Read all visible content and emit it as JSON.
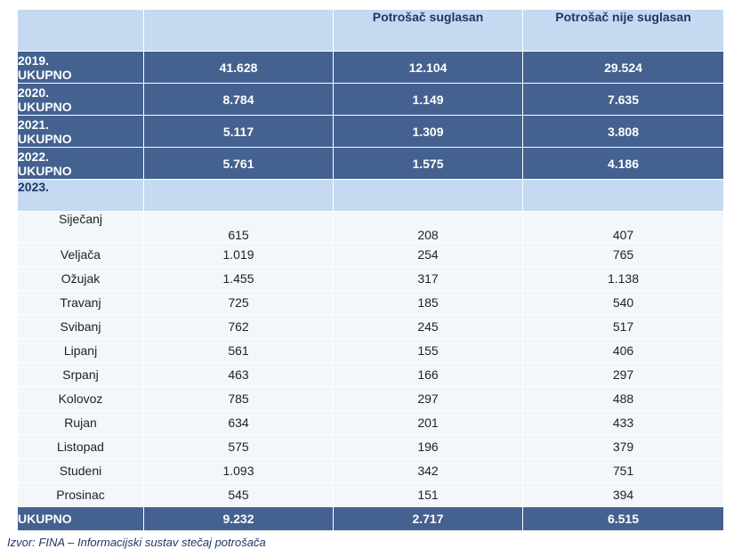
{
  "header": {
    "col1": "",
    "col2": "",
    "col3": "Potrošač suglasan",
    "col4": "Potrošač nije suglasan"
  },
  "years": [
    {
      "year": "2019.",
      "label": "UKUPNO",
      "total": "41.628",
      "agree": "12.104",
      "disagree": "29.524"
    },
    {
      "year": "2020.",
      "label": "UKUPNO",
      "total": "8.784",
      "agree": "1.149",
      "disagree": "7.635"
    },
    {
      "year": "2021.",
      "label": "UKUPNO",
      "total": "5.117",
      "agree": "1.309",
      "disagree": "3.808"
    },
    {
      "year": "2022.",
      "label": "UKUPNO",
      "total": "5.761",
      "agree": "1.575",
      "disagree": "4.186"
    }
  ],
  "year2023": {
    "label": "2023."
  },
  "months": [
    {
      "name": "Siječanj",
      "total": "615",
      "agree": "208",
      "disagree": "407"
    },
    {
      "name": "Veljača",
      "total": "1.019",
      "agree": "254",
      "disagree": "765"
    },
    {
      "name": "Ožujak",
      "total": "1.455",
      "agree": "317",
      "disagree": "1.138"
    },
    {
      "name": "Travanj",
      "total": "725",
      "agree": "185",
      "disagree": "540"
    },
    {
      "name": "Svibanj",
      "total": "762",
      "agree": "245",
      "disagree": "517"
    },
    {
      "name": "Lipanj",
      "total": "561",
      "agree": "155",
      "disagree": "406"
    },
    {
      "name": "Srpanj",
      "total": "463",
      "agree": "166",
      "disagree": "297"
    },
    {
      "name": "Kolovoz",
      "total": "785",
      "agree": "297",
      "disagree": "488"
    },
    {
      "name": "Rujan",
      "total": "634",
      "agree": "201",
      "disagree": "433"
    },
    {
      "name": "Listopad",
      "total": "575",
      "agree": "196",
      "disagree": "379"
    },
    {
      "name": "Studeni",
      "total": "1.093",
      "agree": "342",
      "disagree": "751"
    },
    {
      "name": "Prosinac",
      "total": "545",
      "agree": "151",
      "disagree": "394"
    }
  ],
  "total2023": {
    "label": "UKUPNO",
    "total": "9.232",
    "agree": "2.717",
    "disagree": "6.515"
  },
  "source": "Izvor: FINA – Informacijski sustav stečaj potrošača"
}
